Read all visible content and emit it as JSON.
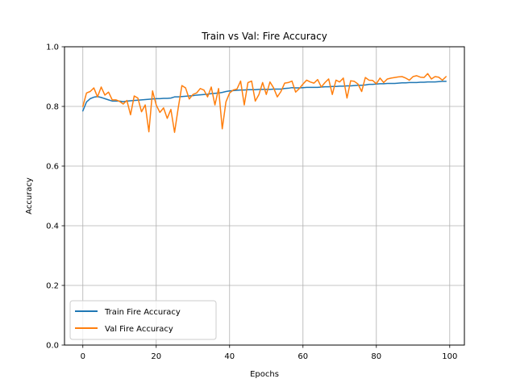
{
  "chart_data": {
    "type": "line",
    "title": "Train vs Val: Fire Accuracy",
    "xlabel": "Epochs",
    "ylabel": "Accuracy",
    "xlim": [
      -5,
      104
    ],
    "ylim": [
      0.0,
      1.0
    ],
    "xticks": [
      0,
      20,
      40,
      60,
      80,
      100
    ],
    "xtick_labels": [
      "0",
      "20",
      "40",
      "60",
      "80",
      "100"
    ],
    "yticks": [
      0.0,
      0.2,
      0.4,
      0.6,
      0.8,
      1.0
    ],
    "ytick_labels": [
      "0.0",
      "0.2",
      "0.4",
      "0.6",
      "0.8",
      "1.0"
    ],
    "grid": true,
    "legend_position": "lower-left",
    "series": [
      {
        "name": "Train Fire Accuracy",
        "color": "#1f77b4",
        "x_start": 0,
        "x_step": 1,
        "values": [
          0.785,
          0.815,
          0.826,
          0.831,
          0.833,
          0.83,
          0.826,
          0.822,
          0.818,
          0.818,
          0.818,
          0.816,
          0.818,
          0.819,
          0.82,
          0.821,
          0.822,
          0.823,
          0.824,
          0.825,
          0.826,
          0.826,
          0.827,
          0.827,
          0.828,
          0.832,
          0.832,
          0.833,
          0.834,
          0.835,
          0.836,
          0.838,
          0.839,
          0.84,
          0.841,
          0.843,
          0.844,
          0.845,
          0.847,
          0.85,
          0.852,
          0.853,
          0.854,
          0.855,
          0.855,
          0.856,
          0.856,
          0.856,
          0.857,
          0.857,
          0.857,
          0.857,
          0.858,
          0.858,
          0.858,
          0.86,
          0.861,
          0.863,
          0.862,
          0.862,
          0.863,
          0.864,
          0.864,
          0.864,
          0.864,
          0.865,
          0.866,
          0.866,
          0.867,
          0.867,
          0.868,
          0.868,
          0.869,
          0.869,
          0.87,
          0.871,
          0.871,
          0.872,
          0.874,
          0.874,
          0.875,
          0.876,
          0.876,
          0.877,
          0.877,
          0.877,
          0.878,
          0.879,
          0.879,
          0.88,
          0.88,
          0.88,
          0.881,
          0.881,
          0.882,
          0.882,
          0.882,
          0.883,
          0.884,
          0.884
        ]
      },
      {
        "name": "Val Fire Accuracy",
        "color": "#ff7f0e",
        "x_start": 0,
        "x_step": 1,
        "values": [
          0.8,
          0.845,
          0.85,
          0.862,
          0.832,
          0.865,
          0.838,
          0.848,
          0.822,
          0.822,
          0.817,
          0.808,
          0.82,
          0.772,
          0.835,
          0.828,
          0.782,
          0.805,
          0.715,
          0.852,
          0.805,
          0.78,
          0.795,
          0.76,
          0.79,
          0.713,
          0.795,
          0.87,
          0.862,
          0.825,
          0.84,
          0.845,
          0.86,
          0.855,
          0.832,
          0.865,
          0.805,
          0.86,
          0.725,
          0.815,
          0.845,
          0.855,
          0.858,
          0.885,
          0.805,
          0.88,
          0.885,
          0.818,
          0.84,
          0.88,
          0.84,
          0.882,
          0.862,
          0.832,
          0.85,
          0.878,
          0.88,
          0.885,
          0.848,
          0.86,
          0.875,
          0.888,
          0.882,
          0.878,
          0.89,
          0.865,
          0.88,
          0.892,
          0.84,
          0.888,
          0.882,
          0.895,
          0.828,
          0.886,
          0.884,
          0.875,
          0.85,
          0.897,
          0.888,
          0.887,
          0.876,
          0.895,
          0.88,
          0.892,
          0.895,
          0.897,
          0.899,
          0.9,
          0.895,
          0.888,
          0.9,
          0.903,
          0.898,
          0.897,
          0.91,
          0.892,
          0.9,
          0.898,
          0.888,
          0.9
        ]
      }
    ]
  }
}
